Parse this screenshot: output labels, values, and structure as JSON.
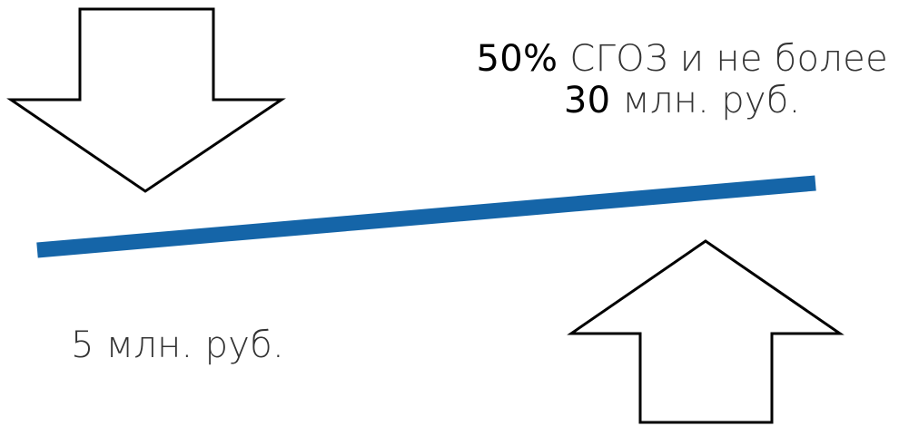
{
  "colors": {
    "bar": "#1565a8",
    "arrow_fill": "#ffffff",
    "arrow_stroke": "#000000",
    "text": "#333333",
    "emphasis": "#000000"
  },
  "icons": {
    "down": "arrow-down-icon",
    "up": "arrow-up-icon"
  },
  "upper_limit": {
    "line1_num": "50%",
    "line1_text": " СГОЗ и не более",
    "line2_num": "30",
    "line2_text": " млн. руб."
  },
  "lower_limit": {
    "text": "5 млн. руб."
  }
}
